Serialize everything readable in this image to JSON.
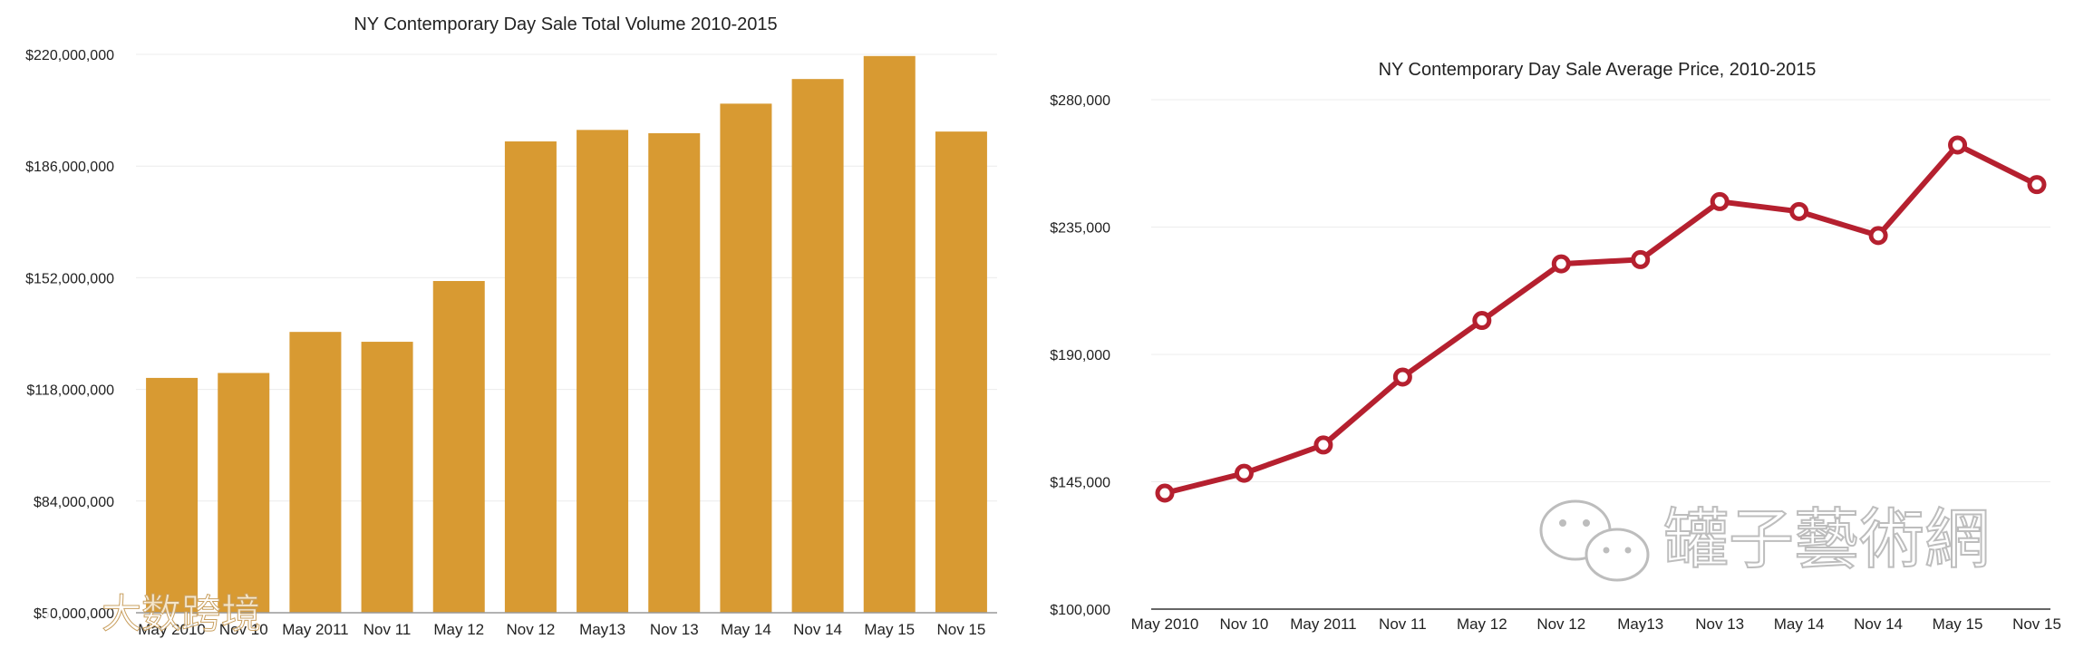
{
  "watermarks": {
    "left_text": "大数跨境",
    "right_text": "罐子藝術網"
  },
  "chart_data": [
    {
      "type": "bar",
      "title": "NY Contemporary Day Sale Total Volume 2010-2015",
      "xlabel": "",
      "ylabel": "",
      "color": "#d89a32",
      "categories": [
        "May 2010",
        "Nov 10",
        "May 2011",
        "Nov 11",
        "May 12",
        "Nov 12",
        "May13",
        "Nov 13",
        "May 14",
        "Nov 14",
        "May 15",
        "Nov 15"
      ],
      "values": [
        121500000,
        123000000,
        135500000,
        132500000,
        151000000,
        193500000,
        197000000,
        196000000,
        205000000,
        212500000,
        219500000,
        196500000
      ],
      "ylim": [
        50000000,
        220000000
      ],
      "yticks": [
        50000000,
        84000000,
        118000000,
        152000000,
        186000000,
        220000000
      ],
      "ytick_labels": [
        "$50,000,000",
        "$84,000,000",
        "$118,000,000",
        "$152,000,000",
        "$186,000,000",
        "$220,000,000"
      ],
      "grid": true,
      "legend": "none"
    },
    {
      "type": "line",
      "title": "NY Contemporary Day Sale Average Price, 2010-2015",
      "xlabel": "",
      "ylabel": "",
      "color": "#b5202f",
      "categories": [
        "May 2010",
        "Nov 10",
        "May 2011",
        "Nov 11",
        "May 12",
        "Nov 12",
        "May13",
        "Nov 13",
        "May 14",
        "Nov 14",
        "May 15",
        "Nov 15"
      ],
      "values": [
        141000,
        148000,
        158000,
        182000,
        202000,
        222000,
        223500,
        244000,
        240500,
        232000,
        264000,
        250000
      ],
      "ylim": [
        100000,
        280000
      ],
      "yticks": [
        100000,
        145000,
        190000,
        235000,
        280000
      ],
      "ytick_labels": [
        "$100,000",
        "$145,000",
        "$190,000",
        "$235,000",
        "$280,000"
      ],
      "grid": true,
      "legend": "none"
    }
  ]
}
